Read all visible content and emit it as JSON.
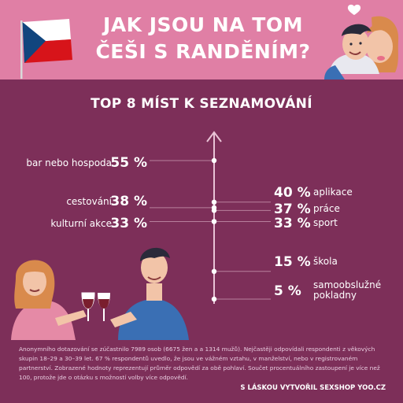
{
  "header": {
    "title_line1": "JAK JSOU NA TOM",
    "title_line2": "ČEŠI S RANDĚNÍM?"
  },
  "chart_data": {
    "type": "dot",
    "title": "TOP 8 MÍST K SEZNAMOVÁNÍ",
    "ylim": [
      0,
      60
    ],
    "points": [
      {
        "label": "bar nebo hospoda",
        "value": 55,
        "value_label": "55 %",
        "side": "left"
      },
      {
        "label": "aplikace",
        "value": 40,
        "value_label": "40 %",
        "side": "right"
      },
      {
        "label": "cestování",
        "value": 38,
        "value_label": "38 %",
        "side": "left"
      },
      {
        "label": "práce",
        "value": 37,
        "value_label": "37 %",
        "side": "right"
      },
      {
        "label": "kulturní akce",
        "value": 33,
        "value_label": "33 %",
        "side": "left"
      },
      {
        "label": "sport",
        "value": 33,
        "value_label": "33 %",
        "side": "right"
      },
      {
        "label": "škola",
        "value": 15,
        "value_label": "15 %",
        "side": "right"
      },
      {
        "label": "samoobslužné pokladny",
        "value": 5,
        "value_label": "5 %",
        "side": "right"
      }
    ]
  },
  "footer": {
    "note": "Anonymního dotazování se zúčastnilo 7989 osob (6675 žen a a 1314 mužů). Nejčastěji odpovídali respondenti z věkových skupin 18–29 a 30–39 let. 67 % respondentů uvedlo, že jsou ve vážném vztahu, v manželství, nebo v registrovaném partnerství. Zobrazené hodnoty reprezentují průměr odpovědí za obě pohlaví. Součet procentuálního zastoupení je více než 100, protože jde o otázku s možností volby více odpovědí.",
    "credit": "S LÁSKOU VYTVOŘIL SEXSHOP YOO.CZ"
  },
  "colors": {
    "background": "#7d2f59",
    "header": "#e07fa5",
    "axis": "#e9c3d6"
  }
}
